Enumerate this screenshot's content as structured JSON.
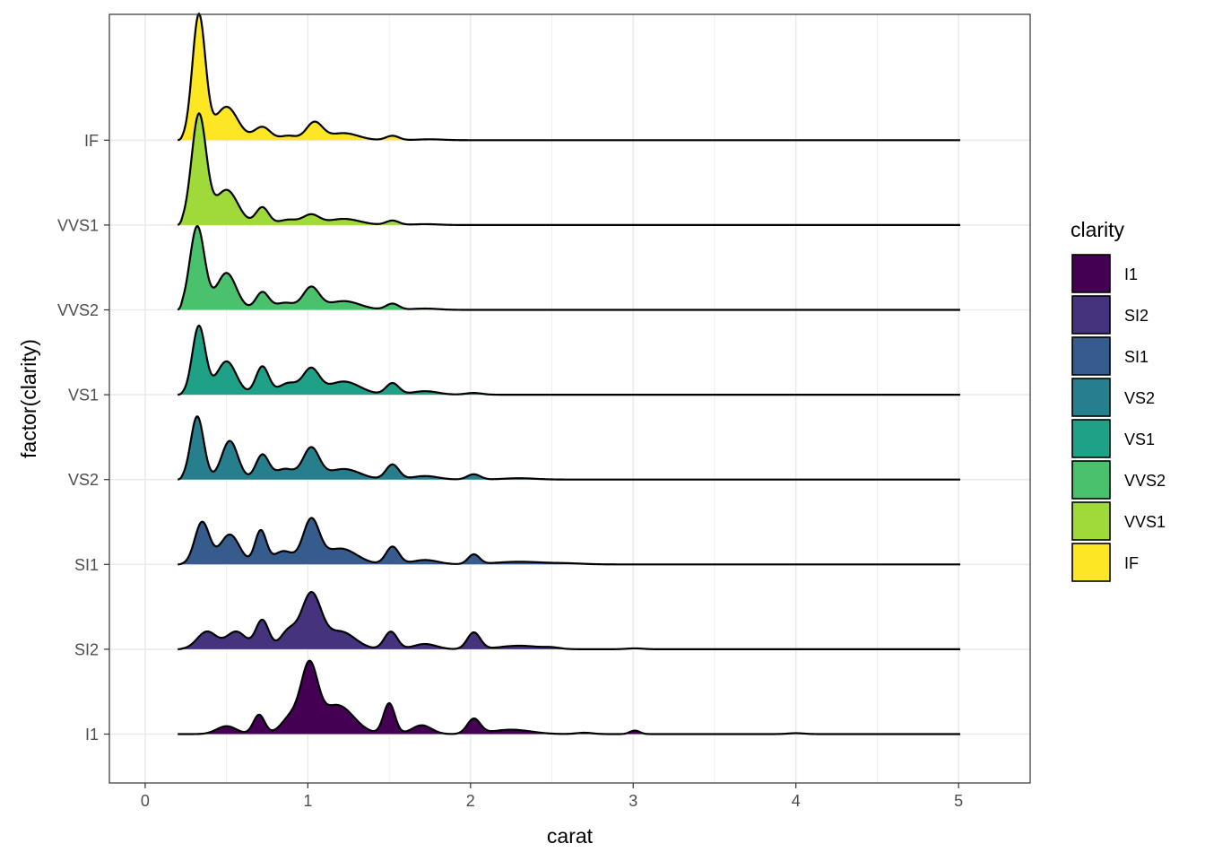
{
  "chart_data": {
    "type": "ridgeline",
    "xlabel": "carat",
    "ylabel": "factor(clarity)",
    "xlim": [
      -0.22,
      5.44
    ],
    "x_ticks": [
      0,
      1,
      2,
      3,
      4,
      5
    ],
    "x_range_data": [
      0.2,
      5.01
    ],
    "grid": true,
    "legend": {
      "title": "clarity",
      "position": "right"
    },
    "categories": [
      "I1",
      "SI2",
      "SI1",
      "VS2",
      "VS1",
      "VVS2",
      "VVS1",
      "IF"
    ],
    "colors": {
      "I1": "#440154",
      "SI2": "#46337E",
      "SI1": "#365C8D",
      "VS2": "#277F8E",
      "VS1": "#1FA187",
      "VVS2": "#4AC16D",
      "VVS1": "#9FDA3A",
      "IF": "#FDE725"
    },
    "series": [
      {
        "name": "I1",
        "peaks": [
          {
            "x": 0.5,
            "h": 0.09,
            "w": 0.06
          },
          {
            "x": 0.7,
            "h": 0.22,
            "w": 0.035
          },
          {
            "x": 0.9,
            "h": 0.2,
            "w": 0.06
          },
          {
            "x": 1.01,
            "h": 0.72,
            "w": 0.05
          },
          {
            "x": 1.18,
            "h": 0.33,
            "w": 0.1
          },
          {
            "x": 1.5,
            "h": 0.35,
            "w": 0.035
          },
          {
            "x": 1.7,
            "h": 0.1,
            "w": 0.06
          },
          {
            "x": 2.02,
            "h": 0.17,
            "w": 0.04
          },
          {
            "x": 2.25,
            "h": 0.05,
            "w": 0.12
          },
          {
            "x": 2.7,
            "h": 0.015,
            "w": 0.05
          },
          {
            "x": 3.01,
            "h": 0.04,
            "w": 0.03
          },
          {
            "x": 4.0,
            "h": 0.01,
            "w": 0.05
          }
        ]
      },
      {
        "name": "SI2",
        "peaks": [
          {
            "x": 0.38,
            "h": 0.2,
            "w": 0.06
          },
          {
            "x": 0.56,
            "h": 0.2,
            "w": 0.06
          },
          {
            "x": 0.72,
            "h": 0.33,
            "w": 0.04
          },
          {
            "x": 0.88,
            "h": 0.2,
            "w": 0.05
          },
          {
            "x": 1.02,
            "h": 0.62,
            "w": 0.06
          },
          {
            "x": 1.2,
            "h": 0.2,
            "w": 0.09
          },
          {
            "x": 1.51,
            "h": 0.2,
            "w": 0.04
          },
          {
            "x": 1.72,
            "h": 0.06,
            "w": 0.07
          },
          {
            "x": 2.02,
            "h": 0.19,
            "w": 0.04
          },
          {
            "x": 2.3,
            "h": 0.04,
            "w": 0.12
          },
          {
            "x": 2.5,
            "h": 0.015,
            "w": 0.05
          },
          {
            "x": 3.01,
            "h": 0.01,
            "w": 0.05
          }
        ]
      },
      {
        "name": "SI1",
        "peaks": [
          {
            "x": 0.35,
            "h": 0.48,
            "w": 0.045
          },
          {
            "x": 0.52,
            "h": 0.34,
            "w": 0.06
          },
          {
            "x": 0.71,
            "h": 0.38,
            "w": 0.035
          },
          {
            "x": 0.85,
            "h": 0.15,
            "w": 0.06
          },
          {
            "x": 1.02,
            "h": 0.49,
            "w": 0.05
          },
          {
            "x": 1.2,
            "h": 0.18,
            "w": 0.1
          },
          {
            "x": 1.52,
            "h": 0.2,
            "w": 0.04
          },
          {
            "x": 1.72,
            "h": 0.05,
            "w": 0.08
          },
          {
            "x": 2.02,
            "h": 0.11,
            "w": 0.035
          },
          {
            "x": 2.3,
            "h": 0.03,
            "w": 0.15
          },
          {
            "x": 2.6,
            "h": 0.01,
            "w": 0.1
          }
        ]
      },
      {
        "name": "VS2",
        "peaks": [
          {
            "x": 0.32,
            "h": 0.72,
            "w": 0.04
          },
          {
            "x": 0.52,
            "h": 0.44,
            "w": 0.05
          },
          {
            "x": 0.72,
            "h": 0.28,
            "w": 0.04
          },
          {
            "x": 0.86,
            "h": 0.12,
            "w": 0.06
          },
          {
            "x": 1.02,
            "h": 0.35,
            "w": 0.05
          },
          {
            "x": 1.22,
            "h": 0.12,
            "w": 0.1
          },
          {
            "x": 1.52,
            "h": 0.17,
            "w": 0.04
          },
          {
            "x": 1.72,
            "h": 0.04,
            "w": 0.08
          },
          {
            "x": 2.02,
            "h": 0.06,
            "w": 0.04
          },
          {
            "x": 2.3,
            "h": 0.015,
            "w": 0.1
          }
        ]
      },
      {
        "name": "VS1",
        "peaks": [
          {
            "x": 0.33,
            "h": 0.78,
            "w": 0.04
          },
          {
            "x": 0.5,
            "h": 0.38,
            "w": 0.06
          },
          {
            "x": 0.72,
            "h": 0.32,
            "w": 0.04
          },
          {
            "x": 0.88,
            "h": 0.13,
            "w": 0.06
          },
          {
            "x": 1.02,
            "h": 0.28,
            "w": 0.05
          },
          {
            "x": 1.22,
            "h": 0.15,
            "w": 0.1
          },
          {
            "x": 1.52,
            "h": 0.13,
            "w": 0.04
          },
          {
            "x": 1.72,
            "h": 0.04,
            "w": 0.08
          },
          {
            "x": 2.02,
            "h": 0.02,
            "w": 0.05
          }
        ]
      },
      {
        "name": "VVS2",
        "peaks": [
          {
            "x": 0.32,
            "h": 0.95,
            "w": 0.045
          },
          {
            "x": 0.5,
            "h": 0.42,
            "w": 0.06
          },
          {
            "x": 0.72,
            "h": 0.2,
            "w": 0.04
          },
          {
            "x": 0.86,
            "h": 0.08,
            "w": 0.06
          },
          {
            "x": 1.02,
            "h": 0.25,
            "w": 0.05
          },
          {
            "x": 1.22,
            "h": 0.1,
            "w": 0.1
          },
          {
            "x": 1.52,
            "h": 0.07,
            "w": 0.04
          },
          {
            "x": 1.72,
            "h": 0.015,
            "w": 0.08
          }
        ]
      },
      {
        "name": "VVS1",
        "peaks": [
          {
            "x": 0.33,
            "h": 1.25,
            "w": 0.045
          },
          {
            "x": 0.5,
            "h": 0.4,
            "w": 0.07
          },
          {
            "x": 0.72,
            "h": 0.2,
            "w": 0.04
          },
          {
            "x": 0.88,
            "h": 0.06,
            "w": 0.06
          },
          {
            "x": 1.02,
            "h": 0.11,
            "w": 0.05
          },
          {
            "x": 1.22,
            "h": 0.07,
            "w": 0.1
          },
          {
            "x": 1.52,
            "h": 0.05,
            "w": 0.04
          },
          {
            "x": 1.72,
            "h": 0.01,
            "w": 0.08
          }
        ]
      },
      {
        "name": "IF",
        "peaks": [
          {
            "x": 0.33,
            "h": 1.42,
            "w": 0.04
          },
          {
            "x": 0.5,
            "h": 0.38,
            "w": 0.07
          },
          {
            "x": 0.72,
            "h": 0.15,
            "w": 0.05
          },
          {
            "x": 0.88,
            "h": 0.05,
            "w": 0.05
          },
          {
            "x": 1.04,
            "h": 0.2,
            "w": 0.05
          },
          {
            "x": 1.22,
            "h": 0.08,
            "w": 0.09
          },
          {
            "x": 1.52,
            "h": 0.05,
            "w": 0.04
          },
          {
            "x": 1.75,
            "h": 0.01,
            "w": 0.08
          }
        ]
      }
    ]
  }
}
